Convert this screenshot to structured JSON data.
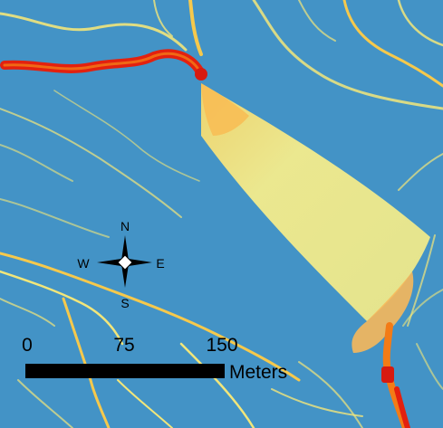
{
  "map": {
    "colors": {
      "background": "#3e8fc4",
      "channel_light": "#f2e67a",
      "channel_mid": "#f6c94c",
      "fan": "#f1ea85",
      "river_high": "#e3210f",
      "river_mid": "#f37b16"
    }
  },
  "compass": {
    "north": "N",
    "south": "S",
    "east": "E",
    "west": "W",
    "icon": "compass-rose-icon"
  },
  "scale_bar": {
    "ticks": [
      "0",
      "75",
      "150"
    ],
    "units": "Meters"
  }
}
